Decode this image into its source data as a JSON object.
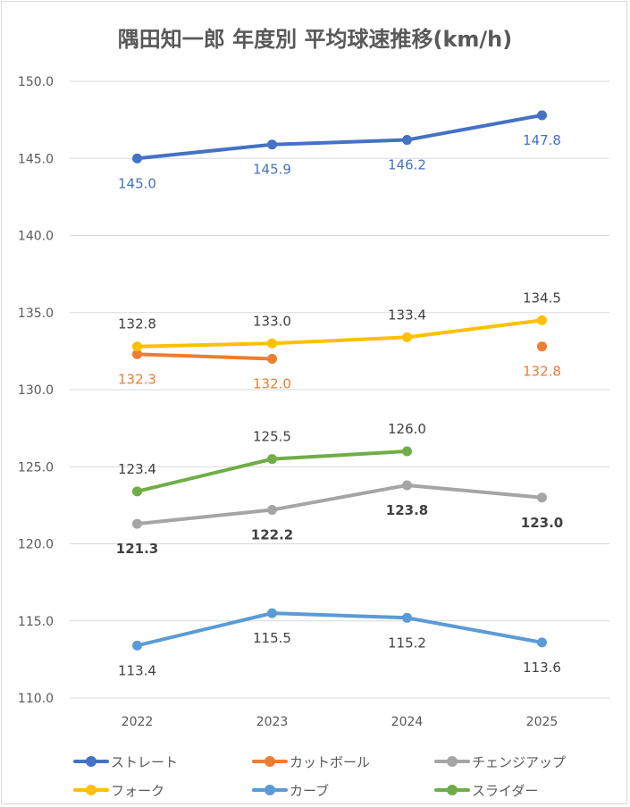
{
  "chart_data": {
    "type": "line",
    "title": "隅田知一郎 年度別 平均球速推移(km/h)",
    "categories": [
      "2022",
      "2023",
      "2024",
      "2025"
    ],
    "ylim": [
      110,
      150
    ],
    "yticks": [
      "110.0",
      "115.0",
      "120.0",
      "125.0",
      "130.0",
      "135.0",
      "140.0",
      "145.0",
      "150.0"
    ],
    "grid": true,
    "legend_position": "bottom",
    "series": [
      {
        "name": "ストレート",
        "color": "#4472c4",
        "values": [
          145.0,
          145.9,
          146.2,
          147.8
        ],
        "labels": [
          "145.0",
          "145.9",
          "146.2",
          "147.8"
        ],
        "label_pos": [
          "below",
          "below",
          "below",
          "below"
        ],
        "label_color": "#4472c4",
        "label_bold": false
      },
      {
        "name": "カットボール",
        "color": "#ed7d31",
        "values": [
          132.3,
          132.0,
          null,
          132.8
        ],
        "labels": [
          "132.3",
          "132.0",
          null,
          "132.8"
        ],
        "label_pos": [
          "below",
          "below",
          null,
          "below"
        ],
        "label_color": "#ed7d31",
        "label_bold": false
      },
      {
        "name": "チェンジアップ",
        "color": "#a5a5a5",
        "values": [
          121.3,
          122.2,
          123.8,
          123.0
        ],
        "labels": [
          "121.3",
          "122.2",
          "123.8",
          "123.0"
        ],
        "label_pos": [
          "below",
          "below",
          "below",
          "below"
        ],
        "label_color": "#404040",
        "label_bold": true
      },
      {
        "name": "フォーク",
        "color": "#ffc000",
        "values": [
          132.8,
          133.0,
          133.4,
          134.5
        ],
        "labels": [
          "132.8",
          "133.0",
          "133.4",
          "134.5"
        ],
        "label_pos": [
          "above",
          "above",
          "above",
          "above"
        ],
        "label_color": "#404040",
        "label_bold": false
      },
      {
        "name": "カーブ",
        "color": "#5b9bd5",
        "values": [
          113.4,
          115.5,
          115.2,
          113.6
        ],
        "labels": [
          "113.4",
          "115.5",
          "115.2",
          "113.6"
        ],
        "label_pos": [
          "below",
          "below",
          "below",
          "below"
        ],
        "label_color": "#404040",
        "label_bold": false
      },
      {
        "name": "スライダー",
        "color": "#70ad47",
        "values": [
          123.4,
          125.5,
          126.0,
          null
        ],
        "labels": [
          "123.4",
          "125.5",
          "126.0",
          null
        ],
        "label_pos": [
          "above",
          "above",
          "above",
          null
        ],
        "label_color": "#404040",
        "label_bold": false
      }
    ]
  }
}
